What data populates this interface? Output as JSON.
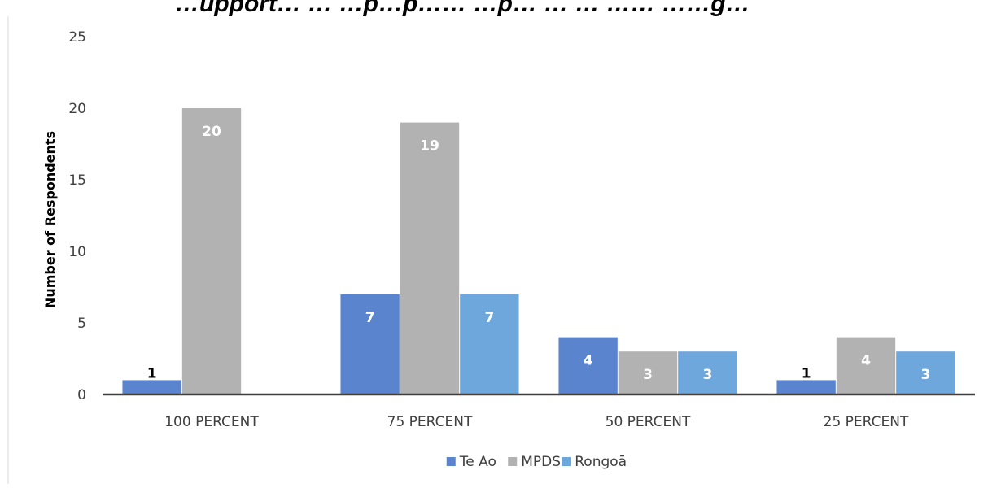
{
  "title_fragment": "…upport… … …p…p…… …p… … … …… ……g…",
  "chart_data": {
    "type": "bar",
    "categories": [
      "100 PERCENT",
      "75 PERCENT",
      "50 PERCENT",
      "25 PERCENT"
    ],
    "series": [
      {
        "name": "Te Ao",
        "values": [
          1,
          7,
          4,
          1
        ],
        "color": "#5b84cf",
        "labels": [
          "1",
          "7",
          "4",
          "1"
        ]
      },
      {
        "name": "MPDS",
        "values": [
          20,
          19,
          3,
          4
        ],
        "color": "#b2b2b2",
        "labels": [
          "20",
          "19",
          "3",
          "4"
        ]
      },
      {
        "name": "Rongoā",
        "values": [
          null,
          7,
          3,
          3
        ],
        "color": "#6ea7dc",
        "labels": [
          "",
          "7",
          "3",
          "3"
        ]
      }
    ],
    "ylabel": "Number of Respondents",
    "xlabel": "",
    "ylim": [
      0,
      25
    ],
    "yticks": [
      0,
      5,
      10,
      15,
      20,
      25
    ],
    "grid": false,
    "legend": "bottom"
  }
}
